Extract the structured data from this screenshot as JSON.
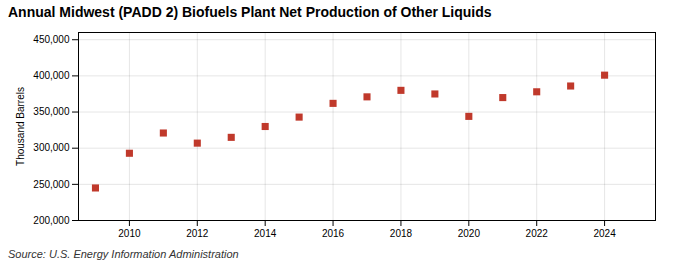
{
  "chart_data": {
    "type": "scatter",
    "title": "Annual Midwest (PADD 2) Biofuels Plant Net Production of Other Liquids",
    "ylabel": "Thousand Barrels",
    "source": "Source: U.S. Energy Information Administration",
    "x": [
      2009,
      2010,
      2011,
      2012,
      2013,
      2014,
      2015,
      2016,
      2017,
      2018,
      2019,
      2020,
      2021,
      2022,
      2023,
      2024
    ],
    "values": [
      245000,
      293000,
      321000,
      307000,
      315000,
      330000,
      343000,
      362000,
      371000,
      380000,
      375000,
      344000,
      370000,
      378000,
      386000,
      401000
    ],
    "color": "#c0392b",
    "marker": "square",
    "xlim": [
      2008.5,
      2025.5
    ],
    "xticks": [
      2010,
      2012,
      2014,
      2016,
      2018,
      2020,
      2022,
      2024
    ],
    "ylim": [
      200000,
      460000
    ],
    "yticks": [
      {
        "value": 200000,
        "label": "200,000"
      },
      {
        "value": 250000,
        "label": "250,000"
      },
      {
        "value": 300000,
        "label": "300,000"
      },
      {
        "value": 350000,
        "label": "350,000"
      },
      {
        "value": 400000,
        "label": "400,000"
      },
      {
        "value": 450000,
        "label": "450,000"
      }
    ],
    "grid": true
  }
}
